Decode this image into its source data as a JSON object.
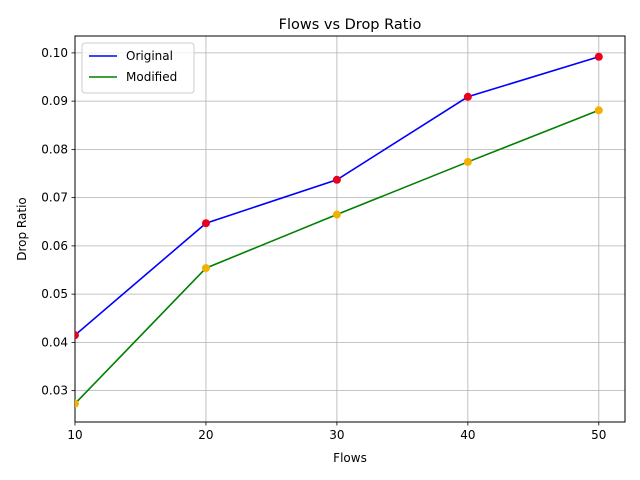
{
  "chart_data": {
    "type": "line",
    "title": "Flows vs Drop Ratio",
    "xlabel": "Flows",
    "ylabel": "Drop Ratio",
    "x": [
      10,
      20,
      30,
      40,
      50
    ],
    "xlim": [
      10,
      52
    ],
    "ylim": [
      0.0235,
      0.1035
    ],
    "xticks": [
      "10",
      "20",
      "30",
      "40",
      "50"
    ],
    "yticks": [
      "0.03",
      "0.04",
      "0.05",
      "0.06",
      "0.07",
      "0.08",
      "0.09",
      "0.10"
    ],
    "grid": true,
    "legend_position": "top-left",
    "series": [
      {
        "name": "Original",
        "values": [
          0.0415,
          0.0647,
          0.0737,
          0.0909,
          0.0992
        ],
        "line_color": "#0000ff",
        "marker_color": "#e8001c"
      },
      {
        "name": "Modified",
        "values": [
          0.0273,
          0.0554,
          0.0665,
          0.0774,
          0.0881
        ],
        "line_color": "#008000",
        "marker_color": "#f2b000"
      }
    ]
  }
}
